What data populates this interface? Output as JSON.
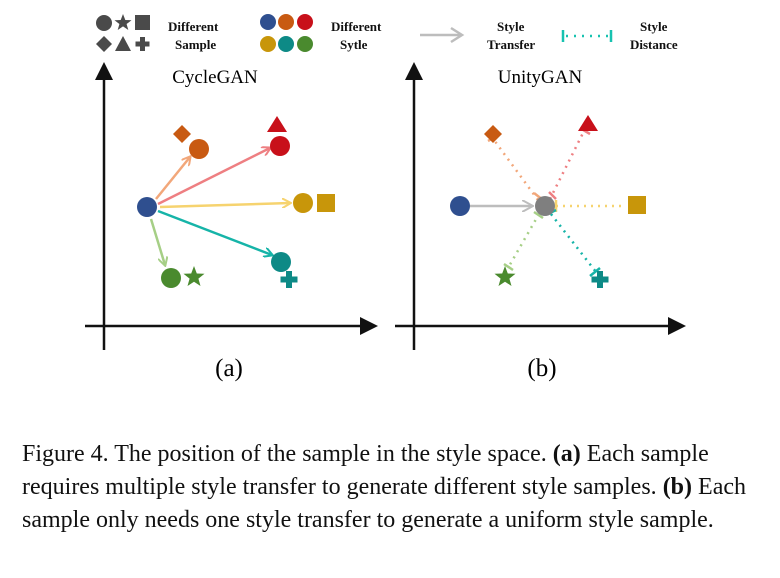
{
  "legend": {
    "sample_label_1": "Different",
    "sample_label_2": "Sample",
    "style_label_1": "Different",
    "style_label_2": "Sytle",
    "transfer_label_1": "Style",
    "transfer_label_2": "Transfer",
    "distance_label_1": "Style",
    "distance_label_2": "Distance"
  },
  "panels": {
    "a": {
      "title": "CycleGAN",
      "label": "(a)"
    },
    "b": {
      "title": "UnityGAN",
      "label": "(b)"
    }
  },
  "caption": {
    "lead": "Figure 4. The position of the sample in the style space. ",
    "a_tag": "(a)",
    "a_text": " Each sample requires multiple style transfer to generate different style samples. ",
    "b_tag": "(b)",
    "b_text": " Each sample only needs one style transfer to generate a uniform style sample."
  },
  "colors": {
    "blue": "#2f4f8f",
    "orange": "#c85a12",
    "red": "#c8101a",
    "gold": "#c8960a",
    "teal": "#0d8a86",
    "green": "#4a8a2e",
    "gray_node": "#7f7f7f",
    "shape_gray": "#4a4a4a",
    "arrow_orange": "#f2a77a",
    "arrow_red": "#ee7f82",
    "arrow_gold": "#f6d36f",
    "arrow_teal": "#16b4a8",
    "arrow_green": "#a6cf86",
    "arrow_gray": "#bdbdbd",
    "dist_teal": "#17c2b0"
  }
}
